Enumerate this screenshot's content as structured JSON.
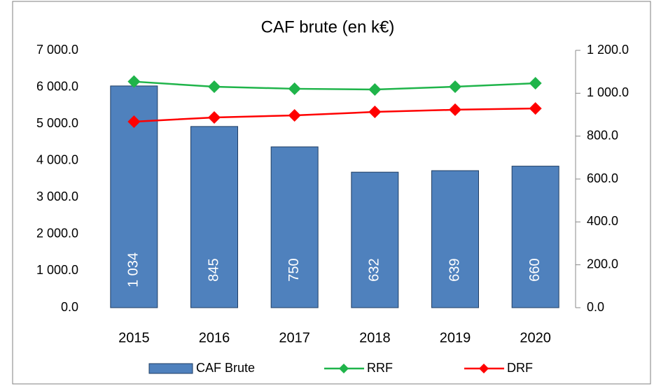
{
  "chart_data": {
    "type": "combo",
    "title": "CAF brute (en k€)",
    "categories": [
      "2015",
      "2016",
      "2017",
      "2018",
      "2019",
      "2020"
    ],
    "series": [
      {
        "name": "CAF Brute",
        "type": "bar",
        "axis": "y2",
        "color": "#4f81bd",
        "values": [
          1034,
          845,
          750,
          632,
          639,
          660
        ],
        "value_labels": [
          "1 034",
          "845",
          "750",
          "632",
          "639",
          "660"
        ]
      },
      {
        "name": "RRF",
        "type": "line",
        "axis": "y",
        "color": "#1fb44a",
        "values": [
          6150,
          6010,
          5955,
          5935,
          6010,
          6105
        ]
      },
      {
        "name": "DRF",
        "type": "line",
        "axis": "y",
        "color": "#ff0000",
        "values": [
          5060,
          5175,
          5230,
          5325,
          5385,
          5420
        ]
      }
    ],
    "ylim": [
      0,
      7000
    ],
    "yticks": [
      {
        "value": 0,
        "label": "0.0"
      },
      {
        "value": 1000,
        "label": "1 000.0"
      },
      {
        "value": 2000,
        "label": "2 000.0"
      },
      {
        "value": 3000,
        "label": "3 000.0"
      },
      {
        "value": 4000,
        "label": "4 000.0"
      },
      {
        "value": 5000,
        "label": "5 000.0"
      },
      {
        "value": 6000,
        "label": "6 000.0"
      },
      {
        "value": 7000,
        "label": "7 000.0"
      }
    ],
    "y2lim": [
      0,
      1200
    ],
    "y2ticks": [
      {
        "value": 0,
        "label": "0.0"
      },
      {
        "value": 200,
        "label": "200.0"
      },
      {
        "value": 400,
        "label": "400.0"
      },
      {
        "value": 600,
        "label": "600.0"
      },
      {
        "value": 800,
        "label": "800.0"
      },
      {
        "value": 1000,
        "label": "1 000.0"
      },
      {
        "value": 1200,
        "label": "1 200.0"
      }
    ],
    "legend": "bottom"
  }
}
